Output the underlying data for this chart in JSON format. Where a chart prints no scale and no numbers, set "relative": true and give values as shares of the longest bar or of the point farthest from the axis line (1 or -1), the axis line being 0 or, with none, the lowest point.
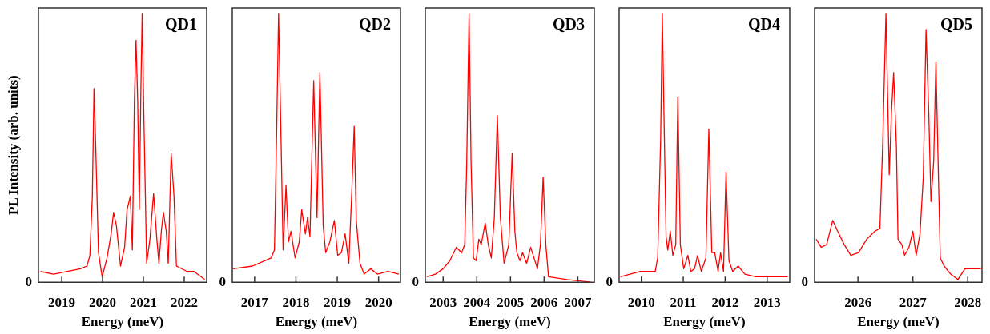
{
  "chart_data": [
    {
      "type": "line",
      "title": "QD1",
      "xlabel": "Energy (meV)",
      "ylabel": "PL Intensity (arb. units)",
      "relative": true,
      "tick_labels": "x",
      "color": "#ff0000",
      "xlim": [
        2018.43,
        2022.55
      ],
      "xticks": [
        2019,
        2020,
        2021,
        2022
      ],
      "annotations": [
        "0"
      ],
      "x": [
        2018.48,
        2018.8,
        2019.46,
        2019.62,
        2019.69,
        2019.75,
        2019.79,
        2019.83,
        2019.9,
        2019.99,
        2020.11,
        2020.21,
        2020.27,
        2020.34,
        2020.44,
        2020.54,
        2020.6,
        2020.68,
        2020.73,
        2020.78,
        2020.82,
        2020.86,
        2020.9,
        2020.94,
        2020.97,
        2021.01,
        2021.08,
        2021.16,
        2021.25,
        2021.33,
        2021.38,
        2021.44,
        2021.49,
        2021.56,
        2021.61,
        2021.68,
        2021.75,
        2021.81,
        2022.07,
        2022.24,
        2022.5
      ],
      "values": [
        0.04,
        0.03,
        0.05,
        0.06,
        0.1,
        0.32,
        0.72,
        0.52,
        0.11,
        0.02,
        0.09,
        0.18,
        0.26,
        0.21,
        0.06,
        0.13,
        0.27,
        0.32,
        0.12,
        0.68,
        0.9,
        0.68,
        0.27,
        0.73,
        1.0,
        0.63,
        0.07,
        0.16,
        0.33,
        0.16,
        0.07,
        0.19,
        0.26,
        0.19,
        0.07,
        0.48,
        0.32,
        0.06,
        0.04,
        0.04,
        0.01
      ]
    },
    {
      "type": "line",
      "title": "QD2",
      "xlabel": "Energy (meV)",
      "relative": true,
      "tick_labels": "x",
      "color": "#ff0000",
      "xlim": [
        2016.46,
        2020.53
      ],
      "xticks": [
        2017,
        2018,
        2019,
        2020
      ],
      "annotations": [
        "0"
      ],
      "x": [
        2016.48,
        2016.95,
        2017.4,
        2017.48,
        2017.53,
        2017.58,
        2017.64,
        2017.69,
        2017.76,
        2017.82,
        2017.88,
        2017.98,
        2018.08,
        2018.14,
        2018.23,
        2018.28,
        2018.34,
        2018.43,
        2018.51,
        2018.58,
        2018.66,
        2018.72,
        2018.82,
        2018.93,
        2019.01,
        2019.1,
        2019.19,
        2019.28,
        2019.35,
        2019.41,
        2019.46,
        2019.55,
        2019.65,
        2019.81,
        2019.97,
        2020.23,
        2020.49
      ],
      "values": [
        0.05,
        0.06,
        0.09,
        0.12,
        0.53,
        1.0,
        0.53,
        0.12,
        0.36,
        0.15,
        0.19,
        0.09,
        0.15,
        0.27,
        0.18,
        0.24,
        0.17,
        0.75,
        0.24,
        0.78,
        0.21,
        0.11,
        0.15,
        0.23,
        0.1,
        0.11,
        0.18,
        0.07,
        0.33,
        0.58,
        0.23,
        0.07,
        0.03,
        0.05,
        0.03,
        0.04,
        0.03
      ]
    },
    {
      "type": "line",
      "title": "QD3",
      "xlabel": "Energy (meV)",
      "relative": true,
      "tick_labels": "x",
      "color": "#ff0000",
      "xlim": [
        2002.47,
        2007.49
      ],
      "xticks": [
        2003,
        2004,
        2005,
        2006,
        2007
      ],
      "annotations": [
        "0"
      ],
      "x": [
        2002.52,
        2002.77,
        2003.0,
        2003.2,
        2003.39,
        2003.55,
        2003.64,
        2003.7,
        2003.77,
        2003.83,
        2003.9,
        2003.98,
        2004.06,
        2004.13,
        2004.25,
        2004.34,
        2004.43,
        2004.52,
        2004.61,
        2004.7,
        2004.81,
        2004.95,
        2005.05,
        2005.13,
        2005.19,
        2005.28,
        2005.36,
        2005.48,
        2005.6,
        2005.7,
        2005.8,
        2005.89,
        2005.97,
        2006.05,
        2006.13,
        2006.68,
        2007.38
      ],
      "values": [
        0.02,
        0.03,
        0.05,
        0.08,
        0.13,
        0.11,
        0.14,
        0.44,
        1.0,
        0.44,
        0.09,
        0.08,
        0.16,
        0.14,
        0.22,
        0.14,
        0.09,
        0.24,
        0.62,
        0.24,
        0.07,
        0.14,
        0.48,
        0.19,
        0.11,
        0.08,
        0.11,
        0.07,
        0.13,
        0.09,
        0.05,
        0.14,
        0.39,
        0.14,
        0.02,
        0.01,
        0.0
      ]
    },
    {
      "type": "line",
      "title": "QD4",
      "xlabel": "Energy (meV)",
      "relative": true,
      "tick_labels": "x",
      "color": "#ff0000",
      "xlim": [
        2009.47,
        2013.54
      ],
      "xticks": [
        2010,
        2011,
        2012,
        2013
      ],
      "annotations": [
        "0"
      ],
      "x": [
        2009.5,
        2009.98,
        2010.33,
        2010.39,
        2010.46,
        2010.5,
        2010.55,
        2010.59,
        2010.63,
        2010.69,
        2010.75,
        2010.82,
        2010.87,
        2010.93,
        2011.01,
        2011.11,
        2011.18,
        2011.27,
        2011.34,
        2011.43,
        2011.54,
        2011.61,
        2011.68,
        2011.75,
        2011.83,
        2011.89,
        2011.96,
        2012.02,
        2012.09,
        2012.18,
        2012.31,
        2012.47,
        2012.73,
        2013.49
      ],
      "values": [
        0.02,
        0.04,
        0.04,
        0.09,
        0.53,
        1.0,
        0.53,
        0.17,
        0.12,
        0.19,
        0.1,
        0.14,
        0.69,
        0.14,
        0.05,
        0.1,
        0.04,
        0.05,
        0.1,
        0.04,
        0.09,
        0.57,
        0.11,
        0.11,
        0.04,
        0.11,
        0.04,
        0.41,
        0.08,
        0.04,
        0.06,
        0.03,
        0.02,
        0.02
      ]
    },
    {
      "type": "line",
      "title": "QD5",
      "xlabel": "Energy (meV)",
      "relative": true,
      "tick_labels": "x",
      "color": "#ff0000",
      "xlim": [
        2025.21,
        2028.26
      ],
      "xticks": [
        2026,
        2027,
        2028
      ],
      "annotations": [
        "0"
      ],
      "x": [
        2025.24,
        2025.33,
        2025.43,
        2025.54,
        2025.63,
        2025.75,
        2025.87,
        2026.01,
        2026.16,
        2026.31,
        2026.4,
        2026.45,
        2026.51,
        2026.57,
        2026.61,
        2026.65,
        2026.7,
        2026.73,
        2026.8,
        2026.85,
        2026.93,
        2027.0,
        2027.06,
        2027.13,
        2027.19,
        2027.24,
        2027.29,
        2027.33,
        2027.38,
        2027.42,
        2027.46,
        2027.5,
        2027.57,
        2027.69,
        2027.82,
        2027.95,
        2028.24
      ],
      "values": [
        0.16,
        0.13,
        0.14,
        0.23,
        0.19,
        0.14,
        0.1,
        0.11,
        0.16,
        0.19,
        0.2,
        0.51,
        1.0,
        0.4,
        0.63,
        0.78,
        0.51,
        0.16,
        0.14,
        0.1,
        0.13,
        0.19,
        0.1,
        0.18,
        0.39,
        0.94,
        0.63,
        0.3,
        0.45,
        0.82,
        0.45,
        0.09,
        0.06,
        0.03,
        0.01,
        0.05,
        0.05
      ]
    }
  ]
}
